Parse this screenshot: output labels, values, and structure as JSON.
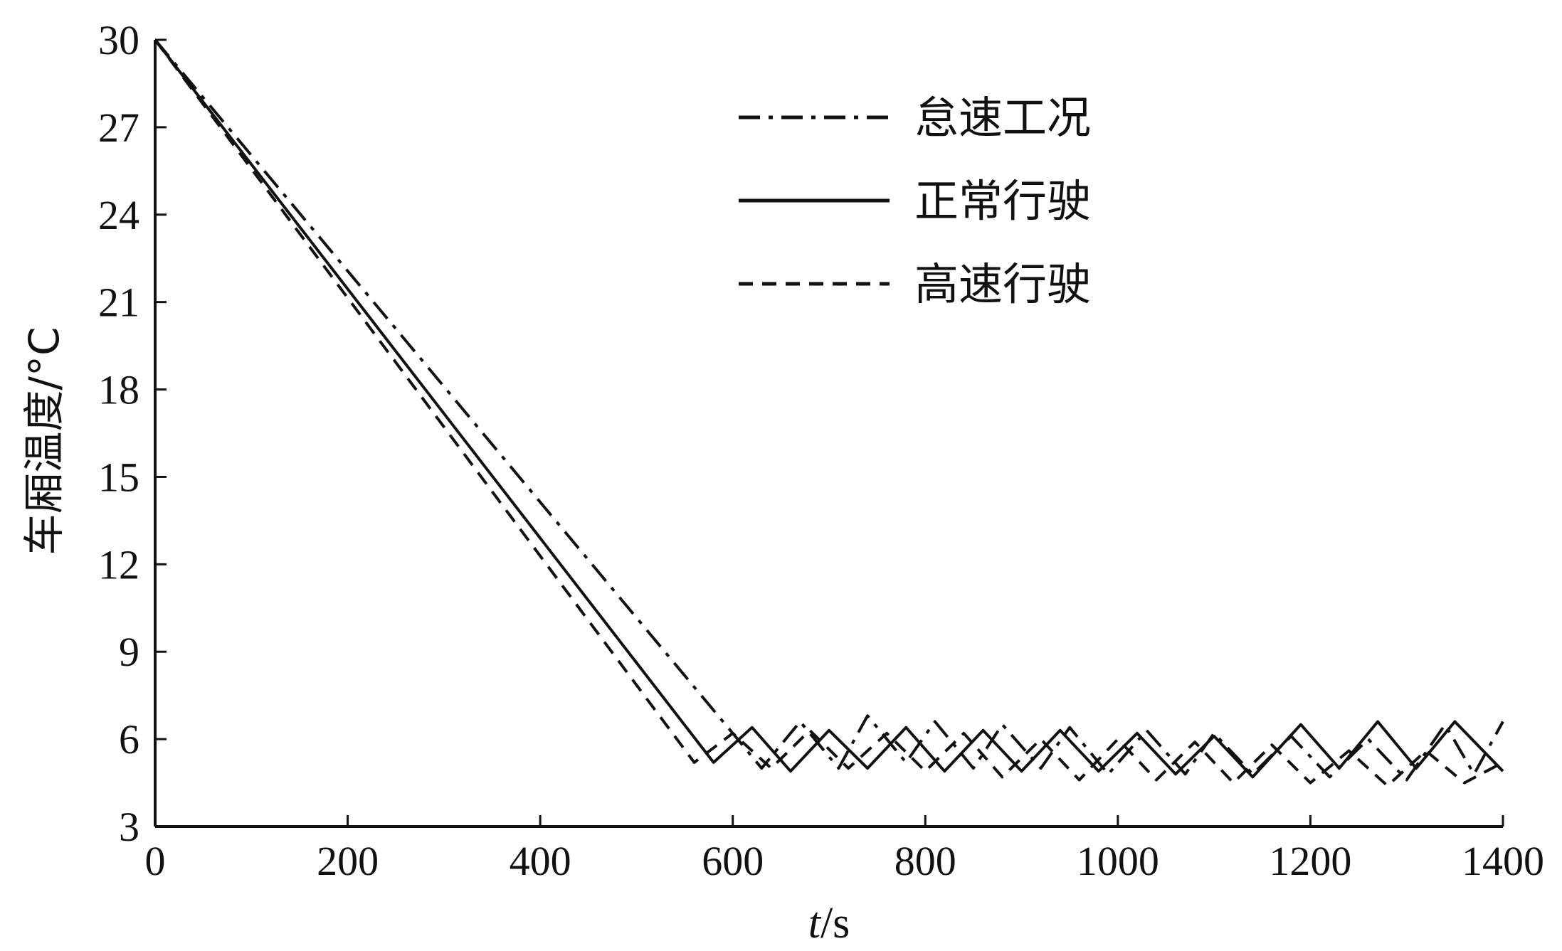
{
  "chart_data": {
    "type": "line",
    "xlabel_italic": "t",
    "xlabel_rest": "/s",
    "ylabel": "车厢温度/°C",
    "xlim": [
      0,
      1400
    ],
    "ylim": [
      3,
      30
    ],
    "xticks": [
      "0",
      "200",
      "400",
      "600",
      "800",
      "1000",
      "1200",
      "1400"
    ],
    "yticks": [
      "3",
      "6",
      "9",
      "12",
      "15",
      "18",
      "21",
      "24",
      "27",
      "30"
    ],
    "legend_position": "top-right",
    "grid": false,
    "series": [
      {
        "name": "怠速工况",
        "style": "dashdot",
        "points": [
          [
            0,
            30
          ],
          [
            600,
            6.2
          ],
          [
            630,
            5.0
          ],
          [
            670,
            6.6
          ],
          [
            710,
            5.0
          ],
          [
            740,
            6.8
          ],
          [
            780,
            5.2
          ],
          [
            810,
            6.6
          ],
          [
            850,
            5.0
          ],
          [
            880,
            6.5
          ],
          [
            920,
            5.0
          ],
          [
            950,
            6.4
          ],
          [
            990,
            4.8
          ],
          [
            1030,
            6.3
          ],
          [
            1070,
            4.8
          ],
          [
            1100,
            6.2
          ],
          [
            1140,
            4.8
          ],
          [
            1180,
            6.1
          ],
          [
            1220,
            4.7
          ],
          [
            1260,
            6.0
          ],
          [
            1300,
            4.6
          ],
          [
            1340,
            6.5
          ],
          [
            1370,
            4.8
          ],
          [
            1400,
            6.6
          ]
        ]
      },
      {
        "name": "正常行驶",
        "style": "solid",
        "points": [
          [
            0,
            30
          ],
          [
            580,
            5.2
          ],
          [
            620,
            6.4
          ],
          [
            660,
            4.9
          ],
          [
            700,
            6.3
          ],
          [
            740,
            5.0
          ],
          [
            780,
            6.4
          ],
          [
            820,
            4.9
          ],
          [
            860,
            6.3
          ],
          [
            900,
            4.9
          ],
          [
            940,
            6.3
          ],
          [
            980,
            4.9
          ],
          [
            1020,
            6.2
          ],
          [
            1060,
            4.8
          ],
          [
            1100,
            6.1
          ],
          [
            1140,
            4.7
          ],
          [
            1190,
            6.5
          ],
          [
            1230,
            5.0
          ],
          [
            1270,
            6.6
          ],
          [
            1310,
            5.0
          ],
          [
            1350,
            6.6
          ],
          [
            1400,
            4.9
          ]
        ]
      },
      {
        "name": "高速行驶",
        "style": "dashed",
        "points": [
          [
            0,
            30
          ],
          [
            560,
            5.2
          ],
          [
            600,
            6.2
          ],
          [
            640,
            5.0
          ],
          [
            680,
            6.3
          ],
          [
            720,
            5.0
          ],
          [
            760,
            6.2
          ],
          [
            800,
            4.9
          ],
          [
            840,
            6.2
          ],
          [
            880,
            4.7
          ],
          [
            920,
            6.0
          ],
          [
            960,
            4.6
          ],
          [
            1000,
            6.0
          ],
          [
            1040,
            4.6
          ],
          [
            1080,
            5.9
          ],
          [
            1120,
            4.5
          ],
          [
            1160,
            5.8
          ],
          [
            1200,
            4.5
          ],
          [
            1240,
            5.6
          ],
          [
            1280,
            4.4
          ],
          [
            1320,
            5.6
          ],
          [
            1360,
            4.5
          ],
          [
            1400,
            5.2
          ]
        ]
      }
    ]
  }
}
